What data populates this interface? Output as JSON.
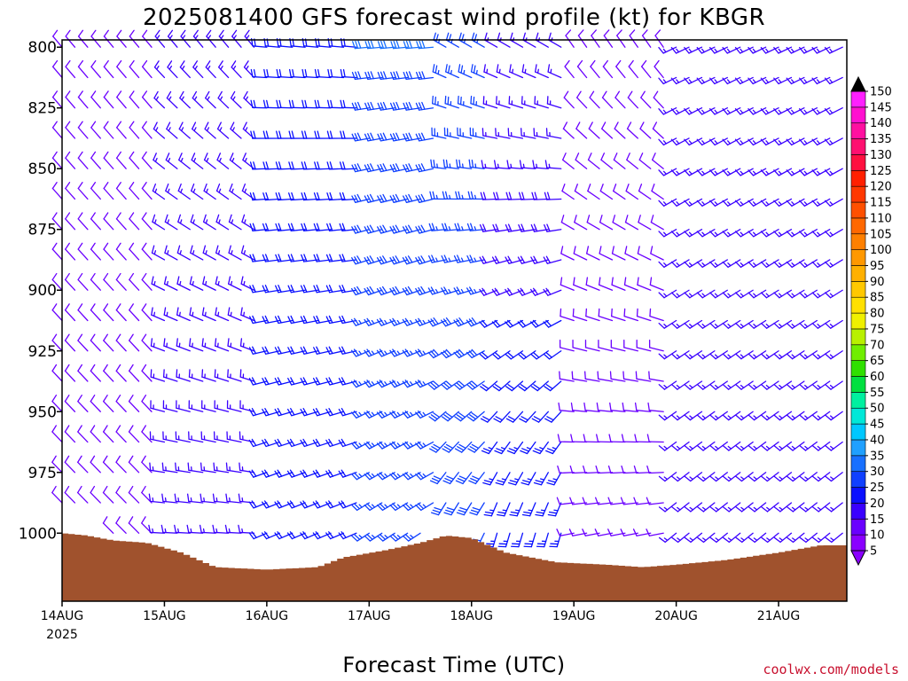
{
  "chart_data": {
    "type": "wind-profile",
    "title": "2025081400 GFS forecast wind profile (kt) for KBGR",
    "xlabel": "Forecast Time (UTC)",
    "credit": "coolwx.com/models",
    "y_axis": {
      "scale": "pressure (inverted)",
      "range": [
        1028,
        797
      ],
      "ticks": [
        "800",
        "825",
        "850",
        "875",
        "900",
        "925",
        "950",
        "975",
        "1000"
      ]
    },
    "x_axis": {
      "range_hours": [
        0,
        184
      ],
      "ticks": [
        {
          "label": "14AUG",
          "hour": 0
        },
        {
          "label": "15AUG",
          "hour": 24
        },
        {
          "label": "16AUG",
          "hour": 48
        },
        {
          "label": "17AUG",
          "hour": 72
        },
        {
          "label": "18AUG",
          "hour": 96
        },
        {
          "label": "19AUG",
          "hour": 120
        },
        {
          "label": "20AUG",
          "hour": 144
        },
        {
          "label": "21AUG",
          "hour": 168
        }
      ],
      "start_year": "2025"
    },
    "pressure_levels": [
      800,
      812.5,
      825,
      837.5,
      850,
      862.5,
      875,
      887.5,
      900,
      912.5,
      925,
      937.5,
      950,
      962.5,
      975,
      987.5,
      1000,
      1012.5
    ],
    "surface_pressure": [
      {
        "hour": 0,
        "p": 1000
      },
      {
        "hour": 6,
        "p": 1001
      },
      {
        "hour": 12,
        "p": 1003
      },
      {
        "hour": 20,
        "p": 1004
      },
      {
        "hour": 28,
        "p": 1008
      },
      {
        "hour": 36,
        "p": 1014
      },
      {
        "hour": 48,
        "p": 1015
      },
      {
        "hour": 60,
        "p": 1014
      },
      {
        "hour": 66,
        "p": 1010
      },
      {
        "hour": 76,
        "p": 1007
      },
      {
        "hour": 84,
        "p": 1004
      },
      {
        "hour": 90,
        "p": 1001
      },
      {
        "hour": 96,
        "p": 1002
      },
      {
        "hour": 104,
        "p": 1008
      },
      {
        "hour": 116,
        "p": 1012
      },
      {
        "hour": 128,
        "p": 1013
      },
      {
        "hour": 136,
        "p": 1014
      },
      {
        "hour": 144,
        "p": 1013
      },
      {
        "hour": 156,
        "p": 1011
      },
      {
        "hour": 168,
        "p": 1008
      },
      {
        "hour": 178,
        "p": 1005
      },
      {
        "hour": 184,
        "p": 1005
      }
    ],
    "wind_regimes": [
      {
        "hour_start": 0,
        "hour_end": 24,
        "dir_low": 315,
        "dir_high": 320,
        "speed_low": 10,
        "speed_high": 10
      },
      {
        "hour_start": 24,
        "hour_end": 48,
        "dir_low": 270,
        "dir_high": 320,
        "speed_low": 15,
        "speed_high": 15
      },
      {
        "hour_start": 48,
        "hour_end": 72,
        "dir_low": 245,
        "dir_high": 275,
        "speed_low": 20,
        "speed_high": 20
      },
      {
        "hour_start": 72,
        "hour_end": 90,
        "dir_low": 235,
        "dir_high": 265,
        "speed_low": 25,
        "speed_high": 30
      },
      {
        "hour_start": 90,
        "hour_end": 100,
        "dir_low": 200,
        "dir_high": 300,
        "speed_low": 30,
        "speed_high": 25
      },
      {
        "hour_start": 100,
        "hour_end": 120,
        "dir_low": 190,
        "dir_high": 300,
        "speed_low": 25,
        "speed_high": 15
      },
      {
        "hour_start": 120,
        "hour_end": 144,
        "dir_low": 255,
        "dir_high": 325,
        "speed_low": 10,
        "speed_high": 10
      },
      {
        "hour_start": 144,
        "hour_end": 184,
        "dir_low": 230,
        "dir_high": 245,
        "speed_low": 15,
        "speed_high": 15
      }
    ],
    "colorbar": {
      "labels": [
        "5",
        "10",
        "15",
        "20",
        "25",
        "30",
        "35",
        "40",
        "45",
        "50",
        "55",
        "60",
        "65",
        "70",
        "75",
        "80",
        "85",
        "90",
        "95",
        "100",
        "105",
        "110",
        "115",
        "120",
        "125",
        "130",
        "135",
        "140",
        "145",
        "150"
      ],
      "colors": [
        "#8a00ff",
        "#6a00ff",
        "#3a00ff",
        "#0a10ff",
        "#1040ff",
        "#1870ff",
        "#20a0ff",
        "#00c8ff",
        "#00e8d8",
        "#00f0a0",
        "#00e040",
        "#30e000",
        "#70ee00",
        "#b8f000",
        "#f0f000",
        "#ffe000",
        "#ffc800",
        "#ffb000",
        "#ff9800",
        "#ff8000",
        "#ff6800",
        "#ff5000",
        "#ff3800",
        "#ff2000",
        "#ff1040",
        "#ff1070",
        "#ff10a0",
        "#ff10d0",
        "#ff20ff"
      ]
    },
    "colors": {
      "ground": "#a0522d",
      "ground_edge": "#4a2a12",
      "axis": "#000000",
      "credit": "#c8102e"
    }
  }
}
